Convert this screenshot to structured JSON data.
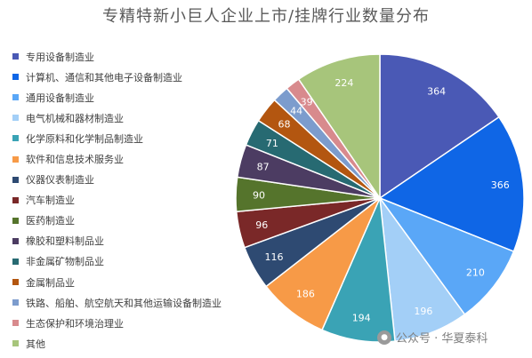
{
  "chart_data": {
    "type": "pie",
    "title": "专精特新小巨人企业上市/挂牌行业数量分布",
    "legend_position": "left",
    "categories": [
      "专用设备制造业",
      "计算机、通信和其他电子设备制造业",
      "通用设备制造业",
      "电气机械和器材制造业",
      "化学原料和化学制品制造业",
      "软件和信息技术服务业",
      "仪器仪表制造业",
      "汽车制造业",
      "医药制造业",
      "橡胶和塑料制品业",
      "非金属矿物制品业",
      "金属制品业",
      "铁路、船舶、航空航天和其他运输设备制造业",
      "生态保护和环境治理业",
      "其他"
    ],
    "values": [
      364,
      366,
      210,
      196,
      194,
      186,
      116,
      96,
      90,
      87,
      71,
      68,
      44,
      39,
      224
    ],
    "colors": [
      "#4a59b5",
      "#0f66e6",
      "#5aa7f7",
      "#a3cff7",
      "#3aa3b5",
      "#f79a47",
      "#2e4a72",
      "#7a2828",
      "#55742c",
      "#4c3c62",
      "#276a72",
      "#b35610",
      "#7c9ccd",
      "#d88a8d",
      "#a7c57b"
    ]
  },
  "watermark": {
    "icon": "wechat-icon",
    "text": "公众号 · 华夏泰科"
  }
}
